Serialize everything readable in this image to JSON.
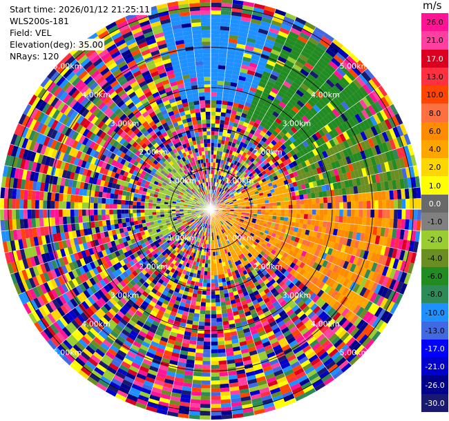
{
  "header": {
    "start_time": "Start time: 2026/01/12 21:25:11",
    "instrument": "WLS200s-181",
    "field": "Field: VEL",
    "elevation": "Elevation(deg): 35.00",
    "nrays": "NRays: 120"
  },
  "colorbar": {
    "unit": "m/s",
    "ticks": [
      "26.0",
      "21.0",
      "17.0",
      "13.0",
      "10.0",
      "8.0",
      "6.0",
      "4.0",
      "2.0",
      "1.0",
      "0.0",
      "-1.0",
      "-2.0",
      "-4.0",
      "-6.0",
      "-8.0",
      "-10.0",
      "-13.0",
      "-17.0",
      "-21.0",
      "-26.0",
      "-30.0"
    ],
    "colors": [
      "#ff1493",
      "#ff40a0",
      "#dc0020",
      "#ff3040",
      "#ff4500",
      "#ff7040",
      "#ff8c00",
      "#ffa500",
      "#ffd700",
      "#ffff00",
      "#696969",
      "#808080",
      "#9acd32",
      "#6b8e23",
      "#228b22",
      "#2e8b57",
      "#1e90ff",
      "#4169e1",
      "#0000ff",
      "#0000cd",
      "#00008b",
      "#191970"
    ]
  },
  "chart_data": {
    "type": "heatmap",
    "projection": "polar (PPI)",
    "field": "VEL",
    "units": "m/s",
    "nrays": 120,
    "value_range": [
      -30,
      30
    ],
    "range_rings": [
      "1.00km",
      "2.00km",
      "3.00km",
      "4.00km",
      "5.00km"
    ],
    "max_range_km": 5.2,
    "grid": "range rings with azimuth spokes",
    "regions": [
      {
        "sector": "north",
        "dominant": "-10 to -13 m/s"
      },
      {
        "sector": "north-east",
        "dominant": "-6 to -8 m/s"
      },
      {
        "sector": "east",
        "dominant": "1 to 8 m/s"
      },
      {
        "sector": "near center west",
        "dominant": "-2 to -4 m/s"
      },
      {
        "sector": "outer ring",
        "dominant": "noise (mixed)"
      }
    ]
  }
}
